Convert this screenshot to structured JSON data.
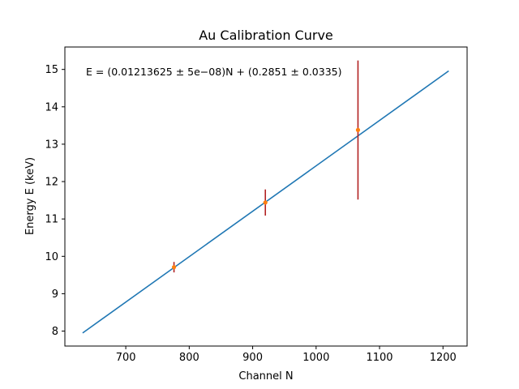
{
  "chart_data": {
    "type": "scatter",
    "title": "Au Calibration Curve",
    "xlabel": "Channel N",
    "ylabel": "Energy E (keV)",
    "xlim": [
      604,
      1238
    ],
    "ylim": [
      7.6,
      15.6
    ],
    "x_ticks": [
      700,
      800,
      900,
      1000,
      1100,
      1200
    ],
    "y_ticks": [
      8,
      9,
      10,
      11,
      12,
      13,
      14,
      15
    ],
    "grid": false,
    "annotation": "E = (0.01213625 ± 5e−08)N + (0.2851 ± 0.0335)",
    "fit_line": {
      "x": [
        632,
        1209
      ],
      "y": [
        7.95,
        14.96
      ],
      "color": "#1f77b4"
    },
    "points": {
      "x": [
        776,
        920,
        1066
      ],
      "y": [
        9.71,
        11.44,
        13.38
      ],
      "yerr": [
        0.14,
        0.35,
        1.86
      ],
      "marker_color": "#ff7f0e",
      "errorbar_color": "#b22222"
    }
  }
}
